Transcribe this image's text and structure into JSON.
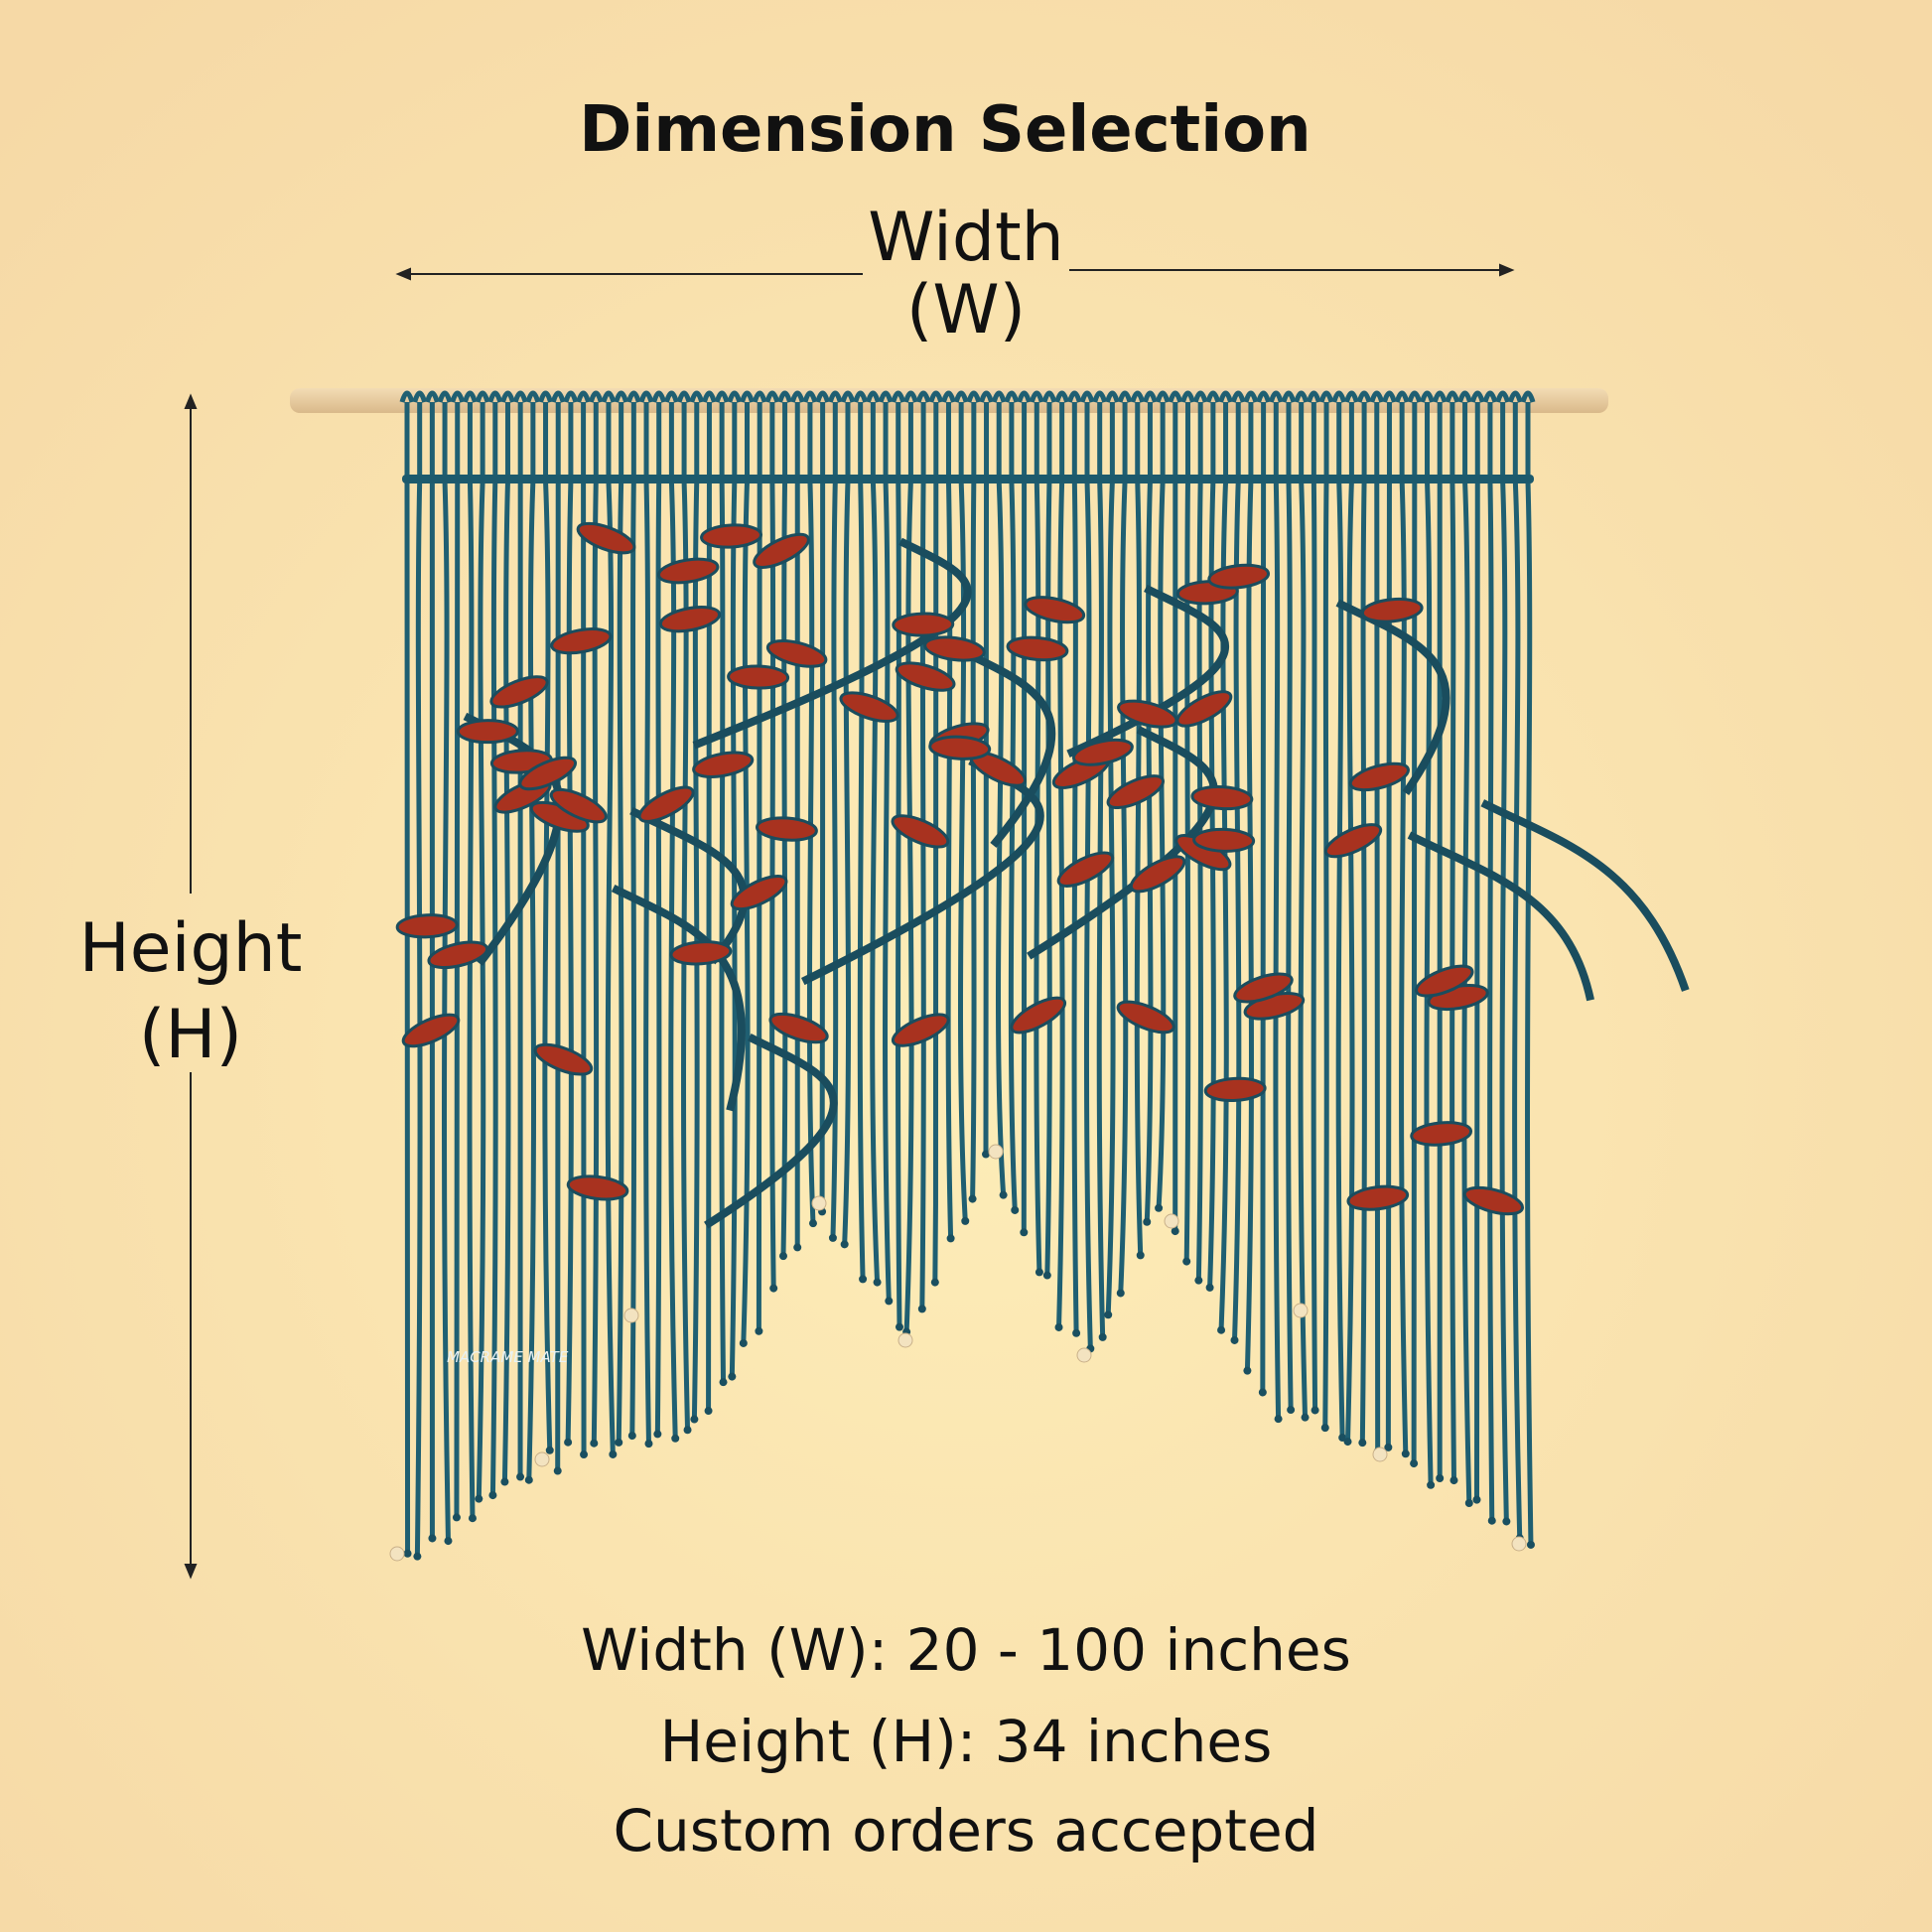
{
  "header": {
    "title": "Dimension Selection"
  },
  "dimension_labels": {
    "width": "Width",
    "width_abbr": "(W)",
    "height": "Height",
    "height_abbr": "(H)"
  },
  "specs": [
    "Width (W): 20 - 100 inches",
    "Height (H): 34 inches",
    "Custom orders accepted"
  ],
  "logo": {
    "brand": "MACRAME MATE"
  }
}
